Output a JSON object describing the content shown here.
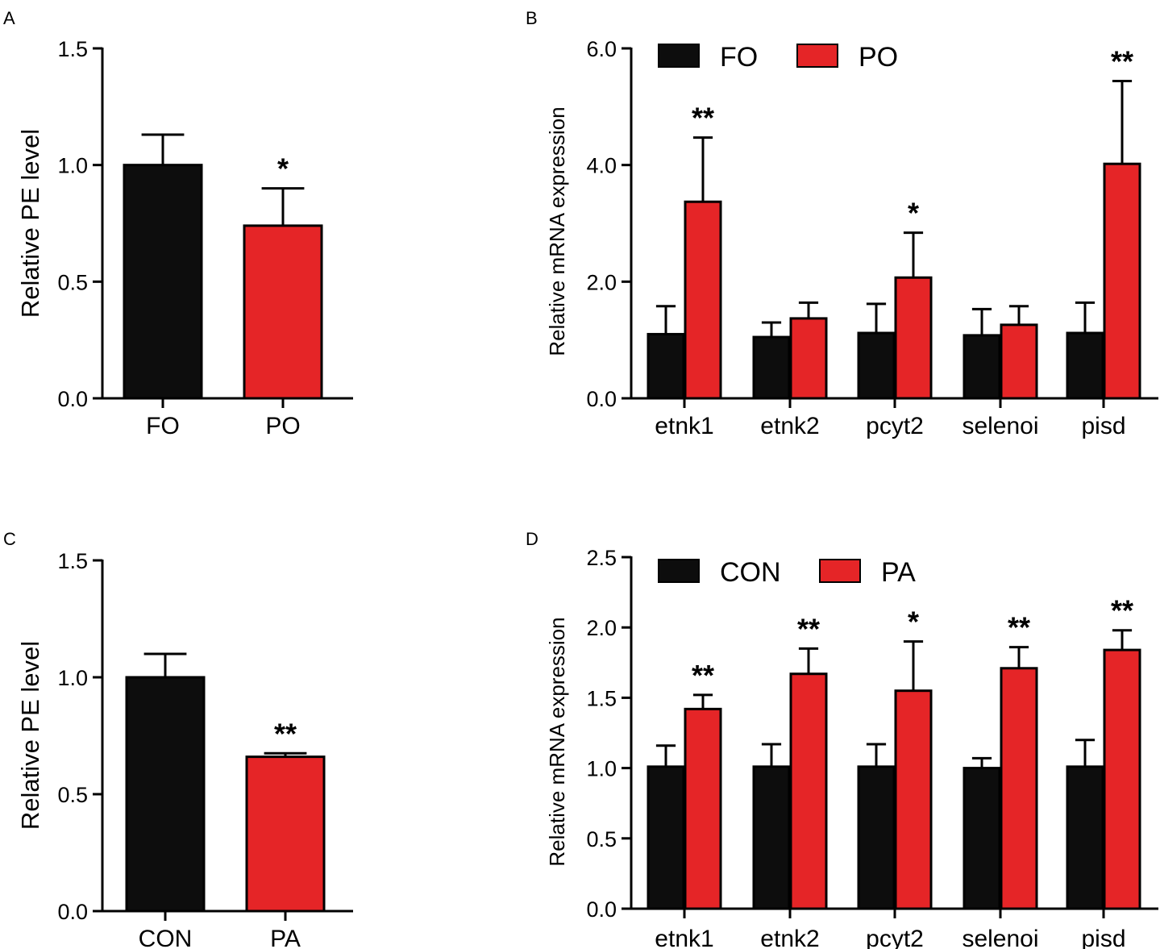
{
  "chart_data": [
    {
      "panel": "A",
      "type": "bar",
      "title": "",
      "xlabel": "",
      "ylabel": "Relative PE level",
      "ylim": [
        0,
        1.5
      ],
      "yticks": [
        "0.0",
        "0.5",
        "1.0",
        "1.5"
      ],
      "categories": [
        "FO",
        "PO"
      ],
      "values": [
        1.0,
        0.74
      ],
      "errors": [
        0.13,
        0.16
      ],
      "colors": [
        "#0d0d0d",
        "#e52527"
      ],
      "significance": [
        "",
        "*"
      ]
    },
    {
      "panel": "B",
      "type": "bar",
      "title": "",
      "xlabel": "",
      "ylabel": "Relative  mRNA expression",
      "ylim": [
        0,
        6
      ],
      "yticks": [
        "0.0",
        "2.0",
        "4.0",
        "6.0"
      ],
      "categories": [
        "etnk1",
        "etnk2",
        "pcyt2",
        "selenoi",
        "pisd"
      ],
      "legend": [
        "FO",
        "PO"
      ],
      "series": [
        {
          "name": "FO",
          "color": "#0d0d0d",
          "values": [
            1.1,
            1.05,
            1.12,
            1.08,
            1.12
          ],
          "errors": [
            0.48,
            0.25,
            0.5,
            0.45,
            0.52
          ]
        },
        {
          "name": "PO",
          "color": "#e52527",
          "values": [
            3.37,
            1.37,
            2.07,
            1.26,
            4.02
          ],
          "errors": [
            1.1,
            0.27,
            0.77,
            0.32,
            1.42
          ]
        }
      ],
      "significance": [
        "**",
        "",
        "*",
        "",
        "**"
      ]
    },
    {
      "panel": "C",
      "type": "bar",
      "title": "",
      "xlabel": "",
      "ylabel": "Relative PE level",
      "ylim": [
        0,
        1.5
      ],
      "yticks": [
        "0.0",
        "0.5",
        "1.0",
        "1.5"
      ],
      "categories": [
        "CON",
        "PA"
      ],
      "values": [
        1.0,
        0.66
      ],
      "errors": [
        0.1,
        0.015
      ],
      "colors": [
        "#0d0d0d",
        "#e52527"
      ],
      "significance": [
        "",
        "**"
      ]
    },
    {
      "panel": "D",
      "type": "bar",
      "title": "",
      "xlabel": "",
      "ylabel": "Relative  mRNA expression",
      "ylim": [
        0,
        2.5
      ],
      "yticks": [
        "0.0",
        "0.5",
        "1.0",
        "1.5",
        "2.0",
        "2.5"
      ],
      "categories": [
        "etnk1",
        "etnk2",
        "pcyt2",
        "selenoi",
        "pisd"
      ],
      "legend": [
        "CON",
        "PA"
      ],
      "series": [
        {
          "name": "CON",
          "color": "#0d0d0d",
          "values": [
            1.01,
            1.01,
            1.01,
            1.0,
            1.01
          ],
          "errors": [
            0.15,
            0.16,
            0.16,
            0.07,
            0.19
          ]
        },
        {
          "name": "PA",
          "color": "#e52527",
          "values": [
            1.42,
            1.67,
            1.55,
            1.71,
            1.84
          ],
          "errors": [
            0.1,
            0.18,
            0.35,
            0.15,
            0.14
          ]
        }
      ],
      "significance": [
        "**",
        "**",
        "*",
        "**",
        "**"
      ]
    }
  ]
}
